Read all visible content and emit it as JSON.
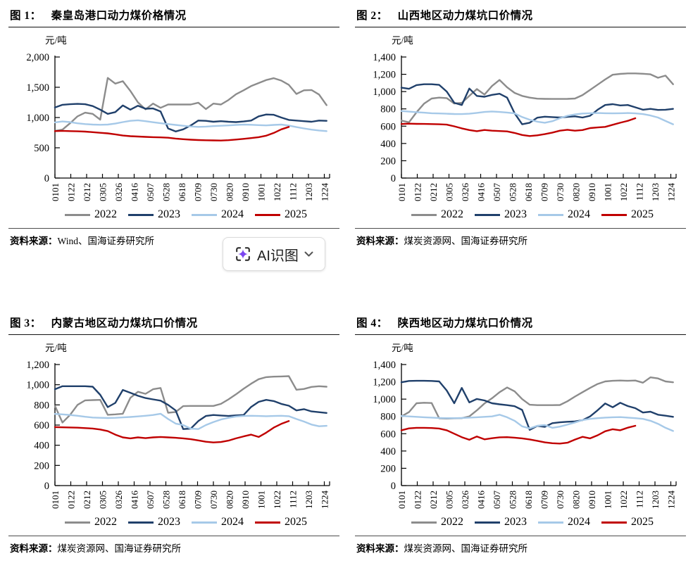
{
  "ai_button": {
    "label": "AI识图",
    "icon": "ai-scan-sparkle-icon",
    "accent_color": "#7a45f0"
  },
  "legend": {
    "items": [
      {
        "label": "2022",
        "color": "#8c8c8c"
      },
      {
        "label": "2023",
        "color": "#20406b"
      },
      {
        "label": "2024",
        "color": "#a6c9e8"
      },
      {
        "label": "2025",
        "color": "#c00000"
      }
    ]
  },
  "chart_data": [
    {
      "type": "line",
      "title_prefix": "图 1：",
      "title": "秦皇岛港口动力煤价格情况",
      "unit": "元/吨",
      "source_label": "资料来源：",
      "source": "Wind、国海证券研究所",
      "ylim": [
        0,
        2000
      ],
      "ytick_step": 500,
      "yticks": [
        "0",
        "500",
        "1,000",
        "1,500",
        "2,000"
      ],
      "x_labels": [
        "0101",
        "0122",
        "0212",
        "0305",
        "0326",
        "0416",
        "0507",
        "0528",
        "0618",
        "0709",
        "0730",
        "0820",
        "0910",
        "1001",
        "1022",
        "1112",
        "1203",
        "1224"
      ],
      "legend_position": "bottom",
      "grid": false,
      "series": [
        {
          "name": "2022",
          "color": "#8c8c8c",
          "values": [
            780,
            800,
            905,
            1020,
            1080,
            1060,
            965,
            1655,
            1560,
            1600,
            1440,
            1250,
            1135,
            1230,
            1160,
            1215,
            1215,
            1215,
            1215,
            1245,
            1140,
            1230,
            1215,
            1290,
            1385,
            1450,
            1520,
            1570,
            1620,
            1650,
            1610,
            1540,
            1390,
            1450,
            1455,
            1380,
            1205
          ]
        },
        {
          "name": "2023",
          "color": "#20406b",
          "values": [
            1165,
            1210,
            1220,
            1225,
            1220,
            1190,
            1130,
            1060,
            1090,
            1200,
            1130,
            1195,
            1145,
            1150,
            1100,
            820,
            770,
            805,
            870,
            950,
            945,
            930,
            940,
            930,
            925,
            935,
            950,
            1020,
            1050,
            1045,
            1000,
            960,
            950,
            940,
            930,
            950,
            945
          ]
        },
        {
          "name": "2024",
          "color": "#a6c9e8",
          "values": [
            920,
            935,
            925,
            905,
            892,
            884,
            880,
            884,
            900,
            925,
            945,
            955,
            940,
            922,
            906,
            892,
            878,
            864,
            852,
            845,
            850,
            858,
            864,
            870,
            878,
            884,
            880,
            874,
            870,
            878,
            884,
            868,
            842,
            820,
            800,
            786,
            775
          ]
        },
        {
          "name": "2025",
          "color": "#c00000",
          "values": [
            775,
            780,
            776,
            772,
            768,
            758,
            748,
            738,
            722,
            702,
            692,
            686,
            680,
            676,
            672,
            666,
            652,
            642,
            634,
            628,
            624,
            622,
            620,
            626,
            636,
            648,
            660,
            676,
            700,
            745,
            805,
            845
          ]
        }
      ]
    },
    {
      "type": "line",
      "title_prefix": "图 2：",
      "title": "山西地区动力煤坑口价情况",
      "unit": "元/吨",
      "source_label": "资料来源：",
      "source": "煤炭资源网、国海证券研究所",
      "ylim": [
        0,
        1400
      ],
      "ytick_step": 200,
      "yticks": [
        "0",
        "200",
        "400",
        "600",
        "800",
        "1,000",
        "1,200",
        "1,400"
      ],
      "x_labels": [
        "0101",
        "0122",
        "0212",
        "0305",
        "0326",
        "0416",
        "0507",
        "0528",
        "0618",
        "0709",
        "0730",
        "0820",
        "0910",
        "1001",
        "1022",
        "1112",
        "1203",
        "1224"
      ],
      "legend_position": "bottom",
      "grid": false,
      "series": [
        {
          "name": "2022",
          "color": "#8c8c8c",
          "values": [
            665,
            645,
            760,
            860,
            920,
            930,
            925,
            862,
            870,
            950,
            1030,
            965,
            1065,
            1135,
            1050,
            985,
            950,
            930,
            918,
            916,
            915,
            915,
            916,
            920,
            960,
            1020,
            1080,
            1140,
            1195,
            1205,
            1210,
            1210,
            1206,
            1200,
            1160,
            1185,
            1085
          ]
        },
        {
          "name": "2023",
          "color": "#20406b",
          "values": [
            1045,
            1032,
            1075,
            1085,
            1085,
            1078,
            1000,
            870,
            845,
            1035,
            950,
            940,
            962,
            975,
            930,
            750,
            622,
            640,
            698,
            710,
            705,
            700,
            708,
            714,
            700,
            720,
            790,
            845,
            855,
            840,
            845,
            818,
            790,
            800,
            788,
            790,
            800
          ]
        },
        {
          "name": "2024",
          "color": "#a6c9e8",
          "values": [
            775,
            768,
            762,
            756,
            750,
            747,
            744,
            741,
            740,
            744,
            754,
            764,
            770,
            764,
            758,
            748,
            706,
            675,
            652,
            640,
            658,
            692,
            720,
            736,
            746,
            750,
            752,
            750,
            748,
            750,
            752,
            748,
            740,
            724,
            700,
            660,
            622
          ]
        },
        {
          "name": "2025",
          "color": "#c00000",
          "values": [
            625,
            629,
            627,
            626,
            624,
            622,
            618,
            598,
            575,
            555,
            542,
            556,
            548,
            544,
            540,
            522,
            498,
            486,
            494,
            508,
            526,
            548,
            558,
            548,
            555,
            578,
            585,
            592,
            616,
            640,
            662,
            692
          ]
        }
      ]
    },
    {
      "type": "line",
      "title_prefix": "图 3：",
      "title": "内蒙古地区动力煤坑口价情况",
      "unit": "元/吨",
      "source_label": "资料来源：",
      "source": "煤炭资源网、国海证券研究所",
      "ylim": [
        0,
        1200
      ],
      "ytick_step": 200,
      "yticks": [
        "0",
        "200",
        "400",
        "600",
        "800",
        "1,000",
        "1,200"
      ],
      "x_labels": [
        "0101",
        "0122",
        "0212",
        "0305",
        "0326",
        "0416",
        "0507",
        "0528",
        "0618",
        "0709",
        "0730",
        "0820",
        "0910",
        "1001",
        "1022",
        "1112",
        "1203",
        "1224"
      ],
      "legend_position": "bottom",
      "grid": false,
      "series": [
        {
          "name": "2022",
          "color": "#8c8c8c",
          "values": [
            790,
            625,
            700,
            800,
            845,
            848,
            850,
            702,
            706,
            712,
            870,
            930,
            910,
            955,
            968,
            722,
            730,
            788,
            790,
            790,
            790,
            790,
            810,
            855,
            905,
            960,
            1010,
            1055,
            1075,
            1080,
            1082,
            1085,
            950,
            958,
            978,
            985,
            980
          ]
        },
        {
          "name": "2023",
          "color": "#20406b",
          "values": [
            955,
            985,
            985,
            985,
            985,
            980,
            900,
            778,
            820,
            948,
            920,
            890,
            868,
            855,
            842,
            800,
            745,
            560,
            565,
            640,
            690,
            700,
            695,
            690,
            696,
            700,
            780,
            830,
            850,
            838,
            810,
            792,
            745,
            758,
            735,
            728,
            720
          ]
        },
        {
          "name": "2024",
          "color": "#a6c9e8",
          "values": [
            710,
            706,
            700,
            692,
            682,
            675,
            672,
            670,
            672,
            676,
            680,
            686,
            692,
            700,
            712,
            660,
            615,
            600,
            565,
            560,
            600,
            630,
            655,
            672,
            685,
            690,
            692,
            690,
            688,
            690,
            692,
            688,
            660,
            635,
            605,
            588,
            592
          ]
        },
        {
          "name": "2025",
          "color": "#c00000",
          "values": [
            580,
            578,
            576,
            574,
            570,
            566,
            556,
            540,
            505,
            478,
            468,
            478,
            470,
            478,
            482,
            478,
            474,
            468,
            460,
            448,
            435,
            428,
            432,
            446,
            468,
            488,
            505,
            482,
            525,
            575,
            612,
            640
          ]
        }
      ]
    },
    {
      "type": "line",
      "title_prefix": "图 4：",
      "title": "陕西地区动力煤坑口价情况",
      "unit": "元/吨",
      "source_label": "资料来源：",
      "source": "煤炭资源网、国海证券研究所",
      "ylim": [
        0,
        1400
      ],
      "ytick_step": 200,
      "yticks": [
        "0",
        "200",
        "400",
        "600",
        "800",
        "1,000",
        "1,200",
        "1,400"
      ],
      "x_labels": [
        "0101",
        "0122",
        "0212",
        "0305",
        "0326",
        "0416",
        "0507",
        "0528",
        "0618",
        "0709",
        "0730",
        "0820",
        "0910",
        "1001",
        "1022",
        "1112",
        "1203",
        "1224"
      ],
      "legend_position": "bottom",
      "grid": false,
      "series": [
        {
          "name": "2022",
          "color": "#8c8c8c",
          "values": [
            800,
            850,
            952,
            958,
            955,
            778,
            775,
            778,
            780,
            800,
            870,
            950,
            1010,
            1080,
            1135,
            1090,
            1000,
            935,
            930,
            930,
            930,
            932,
            975,
            1030,
            1080,
            1130,
            1175,
            1205,
            1212,
            1215,
            1212,
            1215,
            1190,
            1252,
            1240,
            1205,
            1195
          ]
        },
        {
          "name": "2023",
          "color": "#20406b",
          "values": [
            1195,
            1210,
            1212,
            1212,
            1210,
            1205,
            1100,
            952,
            1130,
            962,
            1002,
            985,
            952,
            940,
            930,
            918,
            875,
            645,
            690,
            680,
            722,
            732,
            738,
            742,
            756,
            800,
            872,
            950,
            906,
            958,
            920,
            895,
            845,
            855,
            820,
            808,
            795
          ]
        },
        {
          "name": "2024",
          "color": "#a6c9e8",
          "values": [
            805,
            800,
            795,
            790,
            786,
            782,
            780,
            780,
            782,
            786,
            790,
            795,
            800,
            820,
            790,
            750,
            685,
            662,
            692,
            700,
            668,
            682,
            705,
            730,
            758,
            772,
            780,
            786,
            790,
            792,
            786,
            780,
            772,
            750,
            715,
            668,
            632
          ]
        },
        {
          "name": "2025",
          "color": "#c00000",
          "values": [
            640,
            662,
            668,
            668,
            666,
            660,
            640,
            600,
            560,
            530,
            568,
            535,
            548,
            558,
            560,
            554,
            546,
            534,
            518,
            500,
            490,
            486,
            496,
            532,
            564,
            546,
            582,
            628,
            652,
            640,
            670,
            692
          ]
        }
      ]
    }
  ]
}
